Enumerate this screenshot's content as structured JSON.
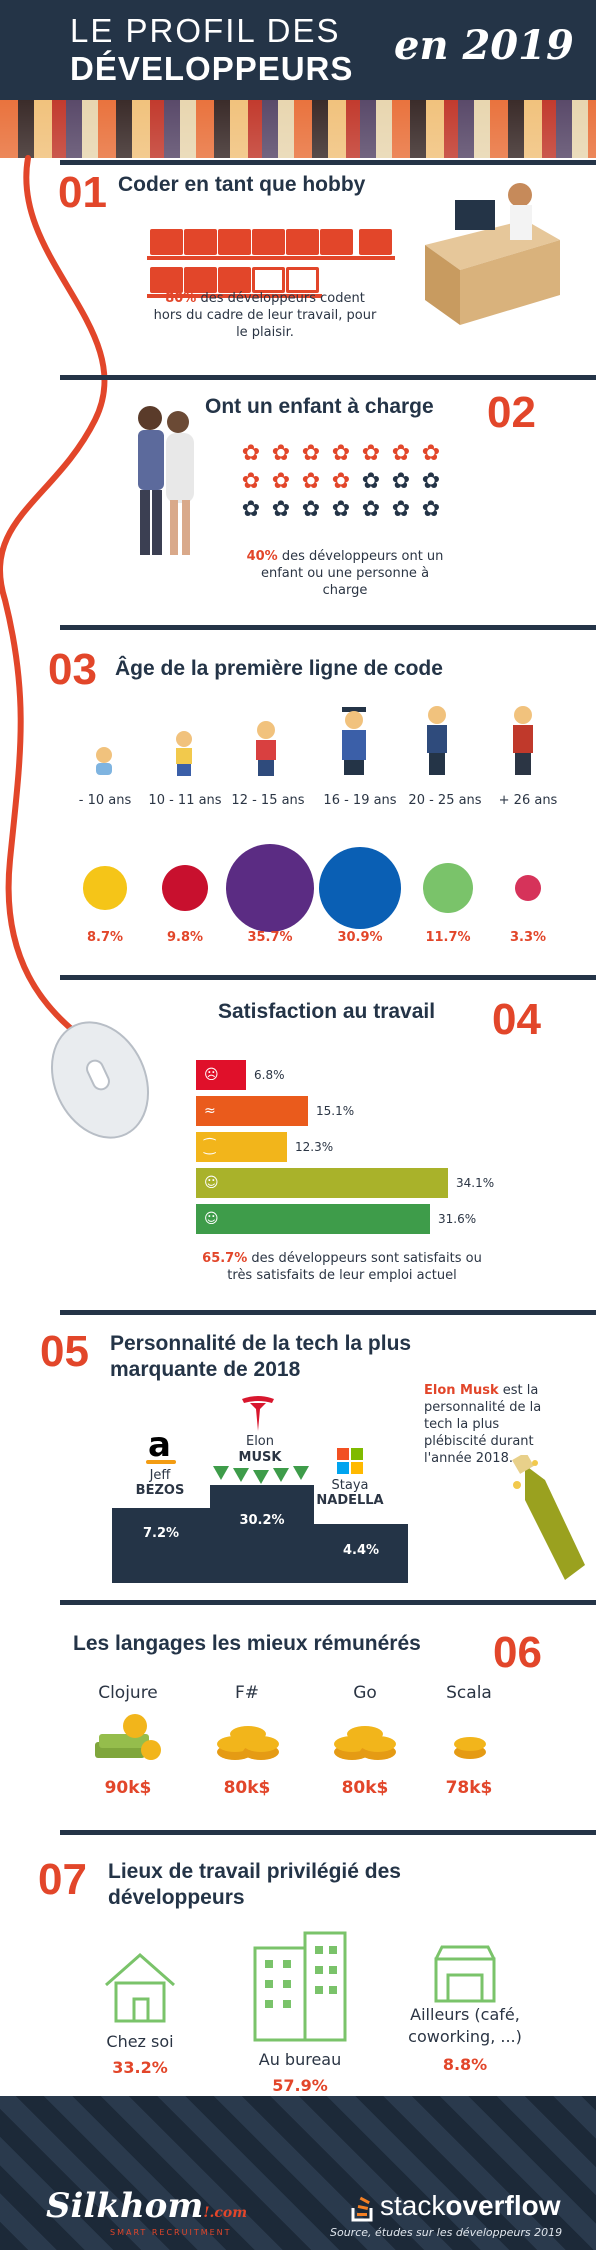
{
  "header": {
    "line1": "LE PROFIL DES",
    "line2": "DÉVELOPPEURS",
    "year": "en 2019"
  },
  "s1": {
    "num": "01",
    "title": "Coder en tant que hobby",
    "pct": "80%",
    "text": "des développeurs codent hors du cadre de leur travail, pour le plaisir."
  },
  "s2": {
    "num": "02",
    "title": "Ont un enfant à charge",
    "pct": "40%",
    "text": "des développeurs ont un enfant ou une personne à charge"
  },
  "s3": {
    "num": "03",
    "title": "Âge de la première ligne de code",
    "groups": [
      {
        "label": "- 10 ans",
        "pct": "8.7%",
        "value": 8.7,
        "color": "#f5c518"
      },
      {
        "label": "10 - 11 ans",
        "pct": "9.8%",
        "value": 9.8,
        "color": "#c8102e"
      },
      {
        "label": "12 - 15 ans",
        "pct": "35.7%",
        "value": 35.7,
        "color": "#5b2c83"
      },
      {
        "label": "16 - 19 ans",
        "pct": "30.9%",
        "value": 30.9,
        "color": "#0a5fb4"
      },
      {
        "label": "20 - 25 ans",
        "pct": "11.7%",
        "value": 11.7,
        "color": "#7ac36a"
      },
      {
        "label": "+ 26 ans",
        "pct": "3.3%",
        "value": 3.3,
        "color": "#d6335a"
      }
    ]
  },
  "s4": {
    "num": "04",
    "title": "Satisfaction au travail",
    "bars": [
      {
        "face": "☹",
        "value": 6.8,
        "label": "6.8%",
        "color": "#e0102a"
      },
      {
        "face": "≈",
        "value": 15.1,
        "label": "15.1%",
        "color": "#ea5b1c"
      },
      {
        "face": "⁐",
        "value": 12.3,
        "label": "12.3%",
        "color": "#f2b51b"
      },
      {
        "face": "☺",
        "value": 34.1,
        "label": "34.1%",
        "color": "#a9b22a"
      },
      {
        "face": "☺",
        "value": 31.6,
        "label": "31.6%",
        "color": "#3e9c4a"
      }
    ],
    "pct": "65.7%",
    "text": "des développeurs sont satisfaits ou très satisfaits de leur emploi actuel"
  },
  "s5": {
    "num": "05",
    "title_l1": "Personnalité de la tech la plus",
    "title_l2": "marquante de 2018",
    "side_name": "Elon Musk",
    "side_text": "est la personnalité de la tech la plus plébiscité durant l'année 2018.",
    "people": [
      {
        "first": "Jeff",
        "last": "BEZOS",
        "pct": "7.2%",
        "value": 7.2
      },
      {
        "first": "Elon",
        "last": "MUSK",
        "pct": "30.2%",
        "value": 30.2
      },
      {
        "first": "Staya",
        "last": "NADELLA",
        "pct": "4.4%",
        "value": 4.4
      }
    ]
  },
  "s6": {
    "num": "06",
    "title": "Les langages les mieux rémunérés",
    "langs": [
      {
        "name": "Clojure",
        "salary": "90k$"
      },
      {
        "name": "F#",
        "salary": "80k$"
      },
      {
        "name": "Go",
        "salary": "80k$"
      },
      {
        "name": "Scala",
        "salary": "78k$"
      }
    ]
  },
  "s7": {
    "num": "07",
    "title_l1": "Lieux de travail privilégié des",
    "title_l2": "développeurs",
    "places": [
      {
        "name": "Chez soi",
        "pct": "33.2%"
      },
      {
        "name": "Au bureau",
        "pct": "57.9%"
      },
      {
        "name_l1": "Ailleurs (café,",
        "name_l2": "coworking, ...)",
        "pct": "8.8%"
      }
    ]
  },
  "footer": {
    "silkhom": "Silkhom",
    "silkhom_suffix": "!.com",
    "silkhom_sub": "SMART RECRUITMENT",
    "stack_a": "stack",
    "stack_b": "overflow",
    "source": "Source, études sur les développeurs 2019"
  },
  "colors": {
    "accent": "#e2462a",
    "navy": "#243447"
  }
}
